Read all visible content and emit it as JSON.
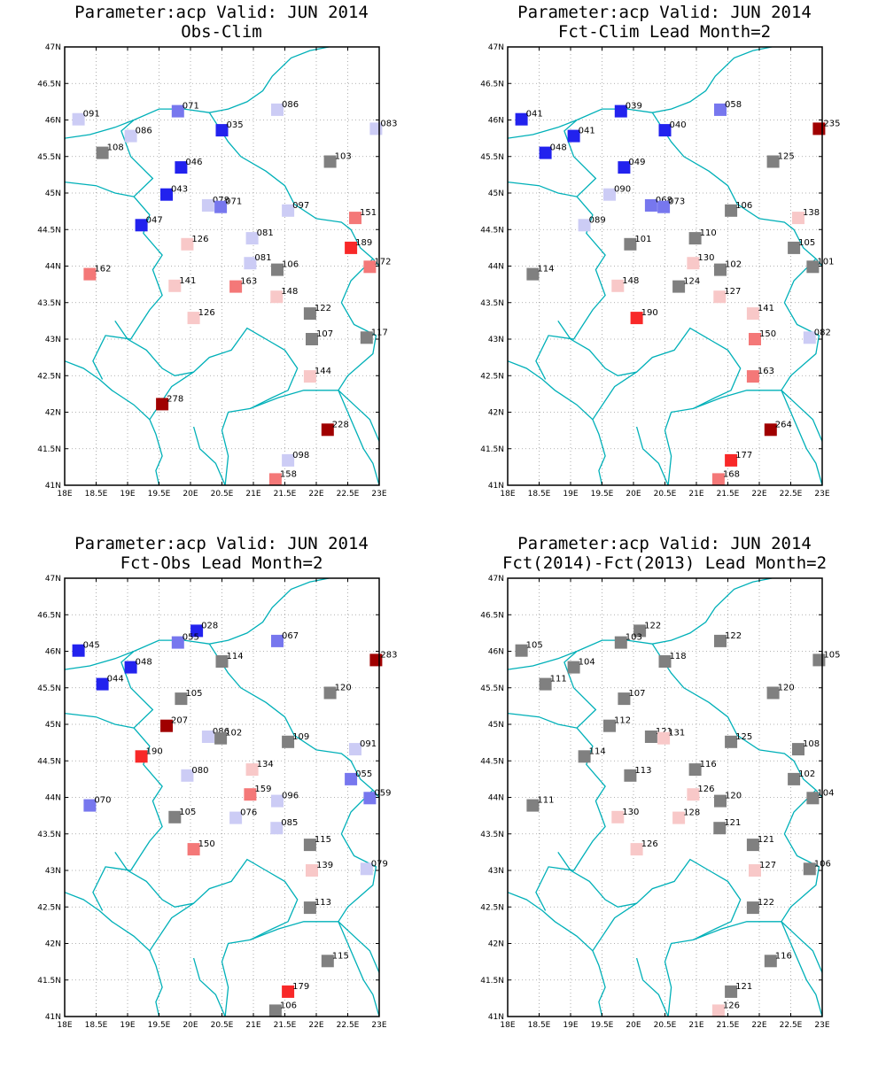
{
  "colors": {
    "dark_blue": "#2222ee",
    "mid_blue": "#7777ee",
    "light_blue": "#ccccf5",
    "grey": "#808080",
    "light_red": "#f8c8c8",
    "mid_red": "#f47878",
    "bright_red": "#f82828",
    "dark_red": "#a00000",
    "borders": "#00b0b8",
    "frame": "#000000"
  },
  "axes": {
    "lon_ticks": [
      "18E",
      "18.5E",
      "19E",
      "19.5E",
      "20E",
      "20.5E",
      "21E",
      "21.5E",
      "22E",
      "22.5E",
      "23E"
    ],
    "lat_ticks": [
      "41N",
      "41.5N",
      "42N",
      "42.5N",
      "43N",
      "43.5N",
      "44N",
      "44.5N",
      "45N",
      "45.5N",
      "46N",
      "46.5N",
      "47N"
    ],
    "lon_range": [
      18,
      23
    ],
    "lat_range": [
      41,
      47
    ],
    "grid": "dotted"
  },
  "chart_data": [
    {
      "type": "scatter",
      "title": "Parameter:acp Valid: JUN 2014",
      "subtitle": "Obs-Clim",
      "points": [
        {
          "lon": 18.22,
          "lat": 46.01,
          "label": "091",
          "color": "light_blue"
        },
        {
          "lon": 19.8,
          "lat": 46.12,
          "label": "071",
          "color": "mid_blue"
        },
        {
          "lon": 21.38,
          "lat": 46.14,
          "label": "086",
          "color": "light_blue"
        },
        {
          "lon": 20.5,
          "lat": 45.86,
          "label": "035",
          "color": "dark_blue"
        },
        {
          "lon": 19.05,
          "lat": 45.78,
          "label": "086",
          "color": "light_blue"
        },
        {
          "lon": 22.95,
          "lat": 45.88,
          "label": "083",
          "color": "light_blue"
        },
        {
          "lon": 18.6,
          "lat": 45.55,
          "label": "108",
          "color": "grey"
        },
        {
          "lon": 22.22,
          "lat": 45.43,
          "label": "103",
          "color": "grey"
        },
        {
          "lon": 19.85,
          "lat": 45.35,
          "label": "046",
          "color": "dark_blue"
        },
        {
          "lon": 19.62,
          "lat": 44.98,
          "label": "043",
          "color": "dark_blue"
        },
        {
          "lon": 20.28,
          "lat": 44.83,
          "label": "078",
          "color": "light_blue"
        },
        {
          "lon": 20.48,
          "lat": 44.81,
          "label": "071",
          "color": "mid_blue"
        },
        {
          "lon": 21.55,
          "lat": 44.76,
          "label": "097",
          "color": "light_blue"
        },
        {
          "lon": 22.62,
          "lat": 44.66,
          "label": "151",
          "color": "mid_red"
        },
        {
          "lon": 19.22,
          "lat": 44.56,
          "label": "047",
          "color": "dark_blue"
        },
        {
          "lon": 19.95,
          "lat": 44.3,
          "label": "126",
          "color": "light_red"
        },
        {
          "lon": 20.98,
          "lat": 44.38,
          "label": "081",
          "color": "light_blue"
        },
        {
          "lon": 22.55,
          "lat": 44.25,
          "label": "189",
          "color": "bright_red"
        },
        {
          "lon": 20.95,
          "lat": 44.04,
          "label": "081",
          "color": "light_blue"
        },
        {
          "lon": 22.85,
          "lat": 43.99,
          "label": "172",
          "color": "mid_red"
        },
        {
          "lon": 21.38,
          "lat": 43.95,
          "label": "106",
          "color": "grey"
        },
        {
          "lon": 18.4,
          "lat": 43.89,
          "label": "162",
          "color": "mid_red"
        },
        {
          "lon": 19.75,
          "lat": 43.73,
          "label": "141",
          "color": "light_red"
        },
        {
          "lon": 20.72,
          "lat": 43.72,
          "label": "163",
          "color": "mid_red"
        },
        {
          "lon": 21.37,
          "lat": 43.58,
          "label": "148",
          "color": "light_red"
        },
        {
          "lon": 21.9,
          "lat": 43.35,
          "label": "122",
          "color": "grey"
        },
        {
          "lon": 20.05,
          "lat": 43.29,
          "label": "126",
          "color": "light_red"
        },
        {
          "lon": 21.93,
          "lat": 43.0,
          "label": "107",
          "color": "grey"
        },
        {
          "lon": 22.8,
          "lat": 43.02,
          "label": "117",
          "color": "grey"
        },
        {
          "lon": 21.9,
          "lat": 42.49,
          "label": "144",
          "color": "light_red"
        },
        {
          "lon": 19.55,
          "lat": 42.11,
          "label": "278",
          "color": "dark_red"
        },
        {
          "lon": 22.18,
          "lat": 41.76,
          "label": "228",
          "color": "dark_red"
        },
        {
          "lon": 21.55,
          "lat": 41.34,
          "label": "098",
          "color": "light_blue"
        },
        {
          "lon": 21.35,
          "lat": 41.08,
          "label": "158",
          "color": "mid_red"
        }
      ]
    },
    {
      "type": "scatter",
      "title": "Parameter:acp Valid: JUN 2014",
      "subtitle": "Fct-Clim Lead Month=2",
      "points": [
        {
          "lon": 18.22,
          "lat": 46.01,
          "label": "041",
          "color": "dark_blue"
        },
        {
          "lon": 19.8,
          "lat": 46.12,
          "label": "039",
          "color": "dark_blue"
        },
        {
          "lon": 21.38,
          "lat": 46.14,
          "label": "058",
          "color": "mid_blue"
        },
        {
          "lon": 20.5,
          "lat": 45.86,
          "label": "040",
          "color": "dark_blue"
        },
        {
          "lon": 19.05,
          "lat": 45.78,
          "label": "041",
          "color": "dark_blue"
        },
        {
          "lon": 22.95,
          "lat": 45.88,
          "label": "235",
          "color": "dark_red"
        },
        {
          "lon": 18.6,
          "lat": 45.55,
          "label": "048",
          "color": "dark_blue"
        },
        {
          "lon": 22.22,
          "lat": 45.43,
          "label": "125",
          "color": "grey"
        },
        {
          "lon": 19.85,
          "lat": 45.35,
          "label": "049",
          "color": "dark_blue"
        },
        {
          "lon": 19.62,
          "lat": 44.98,
          "label": "090",
          "color": "light_blue"
        },
        {
          "lon": 20.28,
          "lat": 44.83,
          "label": "068",
          "color": "mid_blue"
        },
        {
          "lon": 20.48,
          "lat": 44.81,
          "label": "073",
          "color": "mid_blue"
        },
        {
          "lon": 21.55,
          "lat": 44.76,
          "label": "106",
          "color": "grey"
        },
        {
          "lon": 22.62,
          "lat": 44.66,
          "label": "138",
          "color": "light_red"
        },
        {
          "lon": 19.22,
          "lat": 44.56,
          "label": "089",
          "color": "light_blue"
        },
        {
          "lon": 19.95,
          "lat": 44.3,
          "label": "101",
          "color": "grey"
        },
        {
          "lon": 20.98,
          "lat": 44.38,
          "label": "110",
          "color": "grey"
        },
        {
          "lon": 22.55,
          "lat": 44.25,
          "label": "105",
          "color": "grey"
        },
        {
          "lon": 20.95,
          "lat": 44.04,
          "label": "130",
          "color": "light_red"
        },
        {
          "lon": 22.85,
          "lat": 43.99,
          "label": "101",
          "color": "grey"
        },
        {
          "lon": 21.38,
          "lat": 43.95,
          "label": "102",
          "color": "grey"
        },
        {
          "lon": 18.4,
          "lat": 43.89,
          "label": "114",
          "color": "grey"
        },
        {
          "lon": 19.75,
          "lat": 43.73,
          "label": "148",
          "color": "light_red"
        },
        {
          "lon": 20.72,
          "lat": 43.72,
          "label": "124",
          "color": "grey"
        },
        {
          "lon": 21.37,
          "lat": 43.58,
          "label": "127",
          "color": "light_red"
        },
        {
          "lon": 21.9,
          "lat": 43.35,
          "label": "141",
          "color": "light_red"
        },
        {
          "lon": 20.05,
          "lat": 43.29,
          "label": "190",
          "color": "bright_red"
        },
        {
          "lon": 21.93,
          "lat": 43.0,
          "label": "150",
          "color": "mid_red"
        },
        {
          "lon": 22.8,
          "lat": 43.02,
          "label": "082",
          "color": "light_blue"
        },
        {
          "lon": 21.9,
          "lat": 42.49,
          "label": "163",
          "color": "mid_red"
        },
        {
          "lon": 22.18,
          "lat": 41.76,
          "label": "264",
          "color": "dark_red"
        },
        {
          "lon": 21.55,
          "lat": 41.34,
          "label": "177",
          "color": "bright_red"
        },
        {
          "lon": 21.35,
          "lat": 41.08,
          "label": "168",
          "color": "mid_red"
        }
      ]
    },
    {
      "type": "scatter",
      "title": "Parameter:acp Valid: JUN 2014",
      "subtitle": "Fct-Obs Lead Month=2",
      "points": [
        {
          "lon": 18.22,
          "lat": 46.01,
          "label": "045",
          "color": "dark_blue"
        },
        {
          "lon": 20.1,
          "lat": 46.28,
          "label": "028",
          "color": "dark_blue"
        },
        {
          "lon": 19.8,
          "lat": 46.12,
          "label": "055",
          "color": "mid_blue"
        },
        {
          "lon": 21.38,
          "lat": 46.14,
          "label": "067",
          "color": "mid_blue"
        },
        {
          "lon": 20.5,
          "lat": 45.86,
          "label": "114",
          "color": "grey"
        },
        {
          "lon": 19.05,
          "lat": 45.78,
          "label": "048",
          "color": "dark_blue"
        },
        {
          "lon": 22.95,
          "lat": 45.88,
          "label": "283",
          "color": "dark_red"
        },
        {
          "lon": 18.6,
          "lat": 45.55,
          "label": "044",
          "color": "dark_blue"
        },
        {
          "lon": 22.22,
          "lat": 45.43,
          "label": "120",
          "color": "grey"
        },
        {
          "lon": 19.85,
          "lat": 45.35,
          "label": "105",
          "color": "grey"
        },
        {
          "lon": 19.62,
          "lat": 44.98,
          "label": "207",
          "color": "dark_red"
        },
        {
          "lon": 20.28,
          "lat": 44.83,
          "label": "086",
          "color": "light_blue"
        },
        {
          "lon": 20.48,
          "lat": 44.81,
          "label": "102",
          "color": "grey"
        },
        {
          "lon": 21.55,
          "lat": 44.76,
          "label": "109",
          "color": "grey"
        },
        {
          "lon": 22.62,
          "lat": 44.66,
          "label": "091",
          "color": "light_blue"
        },
        {
          "lon": 19.22,
          "lat": 44.56,
          "label": "190",
          "color": "bright_red"
        },
        {
          "lon": 19.95,
          "lat": 44.3,
          "label": "080",
          "color": "light_blue"
        },
        {
          "lon": 20.98,
          "lat": 44.38,
          "label": "134",
          "color": "light_red"
        },
        {
          "lon": 22.55,
          "lat": 44.25,
          "label": "055",
          "color": "mid_blue"
        },
        {
          "lon": 20.95,
          "lat": 44.04,
          "label": "159",
          "color": "mid_red"
        },
        {
          "lon": 22.85,
          "lat": 43.99,
          "label": "059",
          "color": "mid_blue"
        },
        {
          "lon": 21.38,
          "lat": 43.95,
          "label": "096",
          "color": "light_blue"
        },
        {
          "lon": 18.4,
          "lat": 43.89,
          "label": "070",
          "color": "mid_blue"
        },
        {
          "lon": 19.75,
          "lat": 43.73,
          "label": "105",
          "color": "grey"
        },
        {
          "lon": 20.72,
          "lat": 43.72,
          "label": "076",
          "color": "light_blue"
        },
        {
          "lon": 21.37,
          "lat": 43.58,
          "label": "085",
          "color": "light_blue"
        },
        {
          "lon": 21.9,
          "lat": 43.35,
          "label": "115",
          "color": "grey"
        },
        {
          "lon": 20.05,
          "lat": 43.29,
          "label": "150",
          "color": "mid_red"
        },
        {
          "lon": 21.93,
          "lat": 43.0,
          "label": "139",
          "color": "light_red"
        },
        {
          "lon": 22.8,
          "lat": 43.02,
          "label": "079",
          "color": "light_blue"
        },
        {
          "lon": 21.9,
          "lat": 42.49,
          "label": "113",
          "color": "grey"
        },
        {
          "lon": 22.18,
          "lat": 41.76,
          "label": "115",
          "color": "grey"
        },
        {
          "lon": 21.55,
          "lat": 41.34,
          "label": "179",
          "color": "bright_red"
        },
        {
          "lon": 21.35,
          "lat": 41.08,
          "label": "106",
          "color": "grey"
        }
      ]
    },
    {
      "type": "scatter",
      "title": "Parameter:acp Valid: JUN 2014",
      "subtitle": "Fct(2014)-Fct(2013) Lead Month=2",
      "points": [
        {
          "lon": 18.22,
          "lat": 46.01,
          "label": "105",
          "color": "grey"
        },
        {
          "lon": 20.1,
          "lat": 46.28,
          "label": "122",
          "color": "grey"
        },
        {
          "lon": 19.8,
          "lat": 46.12,
          "label": "103",
          "color": "grey"
        },
        {
          "lon": 21.38,
          "lat": 46.14,
          "label": "122",
          "color": "grey"
        },
        {
          "lon": 20.5,
          "lat": 45.86,
          "label": "118",
          "color": "grey"
        },
        {
          "lon": 19.05,
          "lat": 45.78,
          "label": "104",
          "color": "grey"
        },
        {
          "lon": 22.95,
          "lat": 45.88,
          "label": "105",
          "color": "grey"
        },
        {
          "lon": 18.6,
          "lat": 45.55,
          "label": "111",
          "color": "grey"
        },
        {
          "lon": 22.22,
          "lat": 45.43,
          "label": "120",
          "color": "grey"
        },
        {
          "lon": 19.85,
          "lat": 45.35,
          "label": "107",
          "color": "grey"
        },
        {
          "lon": 19.62,
          "lat": 44.98,
          "label": "112",
          "color": "grey"
        },
        {
          "lon": 20.28,
          "lat": 44.83,
          "label": "121",
          "color": "grey"
        },
        {
          "lon": 20.48,
          "lat": 44.81,
          "label": "131",
          "color": "light_red"
        },
        {
          "lon": 21.55,
          "lat": 44.76,
          "label": "125",
          "color": "grey"
        },
        {
          "lon": 22.62,
          "lat": 44.66,
          "label": "108",
          "color": "grey"
        },
        {
          "lon": 19.22,
          "lat": 44.56,
          "label": "114",
          "color": "grey"
        },
        {
          "lon": 19.95,
          "lat": 44.3,
          "label": "113",
          "color": "grey"
        },
        {
          "lon": 20.98,
          "lat": 44.38,
          "label": "116",
          "color": "grey"
        },
        {
          "lon": 22.55,
          "lat": 44.25,
          "label": "102",
          "color": "grey"
        },
        {
          "lon": 20.95,
          "lat": 44.04,
          "label": "126",
          "color": "light_red"
        },
        {
          "lon": 22.85,
          "lat": 43.99,
          "label": "104",
          "color": "grey"
        },
        {
          "lon": 21.38,
          "lat": 43.95,
          "label": "120",
          "color": "grey"
        },
        {
          "lon": 18.4,
          "lat": 43.89,
          "label": "111",
          "color": "grey"
        },
        {
          "lon": 19.75,
          "lat": 43.73,
          "label": "130",
          "color": "light_red"
        },
        {
          "lon": 20.72,
          "lat": 43.72,
          "label": "128",
          "color": "light_red"
        },
        {
          "lon": 21.37,
          "lat": 43.58,
          "label": "121",
          "color": "grey"
        },
        {
          "lon": 21.9,
          "lat": 43.35,
          "label": "121",
          "color": "grey"
        },
        {
          "lon": 20.05,
          "lat": 43.29,
          "label": "126",
          "color": "light_red"
        },
        {
          "lon": 21.93,
          "lat": 43.0,
          "label": "127",
          "color": "light_red"
        },
        {
          "lon": 22.8,
          "lat": 43.02,
          "label": "106",
          "color": "grey"
        },
        {
          "lon": 21.9,
          "lat": 42.49,
          "label": "122",
          "color": "grey"
        },
        {
          "lon": 22.18,
          "lat": 41.76,
          "label": "116",
          "color": "grey"
        },
        {
          "lon": 21.55,
          "lat": 41.34,
          "label": "121",
          "color": "grey"
        },
        {
          "lon": 21.35,
          "lat": 41.08,
          "label": "126",
          "color": "light_red"
        }
      ]
    }
  ]
}
